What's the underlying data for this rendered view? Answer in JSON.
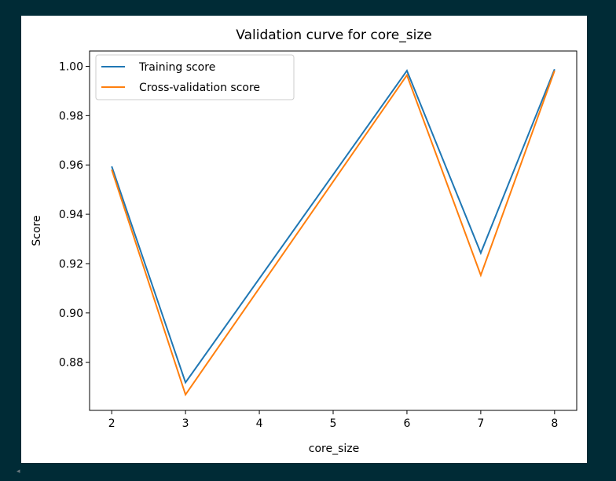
{
  "colors": {
    "page_background": "#002b36",
    "panel_background": "#ffffff",
    "training_line": "#1f77b4",
    "cv_line": "#ff7f0e"
  },
  "scroll_hint_icon": "scroll-left-icon",
  "scroll_hint_glyph": "◂",
  "chart_data": {
    "type": "line",
    "title": "Validation curve for core_size",
    "xlabel": "core_size",
    "ylabel": "Score",
    "x": [
      2,
      3,
      6,
      7,
      8
    ],
    "xticks": [
      "2",
      "3",
      "4",
      "5",
      "6",
      "7",
      "8"
    ],
    "xtick_values": [
      2,
      3,
      4,
      5,
      6,
      7,
      8
    ],
    "yticks": [
      "0.88",
      "0.90",
      "0.92",
      "0.94",
      "0.96",
      "0.98",
      "1.00"
    ],
    "ytick_values": [
      0.88,
      0.9,
      0.92,
      0.94,
      0.96,
      0.98,
      1.0
    ],
    "xlim": [
      1.7,
      8.3
    ],
    "ylim": [
      0.8605,
      1.0062
    ],
    "grid": false,
    "legend_position": "upper-left",
    "series": [
      {
        "name": "Training score",
        "color": "#1f77b4",
        "values": [
          0.9594,
          0.8718,
          0.9982,
          0.9243,
          0.9988
        ]
      },
      {
        "name": "Cross-validation score",
        "color": "#ff7f0e",
        "values": [
          0.9581,
          0.8669,
          0.9964,
          0.9153,
          0.9982
        ]
      }
    ]
  }
}
